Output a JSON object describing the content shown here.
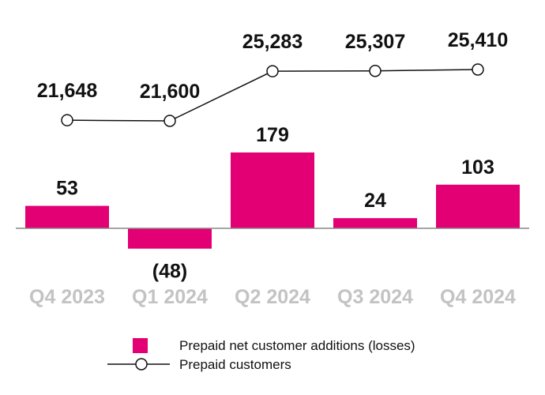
{
  "chart_data": {
    "type": "bar+line",
    "categories": [
      "Q4 2023",
      "Q1 2024",
      "Q2 2024",
      "Q3 2024",
      "Q4 2024"
    ],
    "series": [
      {
        "name": "Prepaid net customer additions (losses)",
        "type": "bar",
        "color": "#e20074",
        "values": [
          53,
          -48,
          179,
          24,
          103
        ],
        "labels": [
          "53",
          "(48)",
          "179",
          "24",
          "103"
        ]
      },
      {
        "name": "Prepaid customers",
        "type": "line",
        "color": "#111111",
        "values": [
          21648,
          21600,
          25283,
          25307,
          25410
        ],
        "labels": [
          "21,648",
          "21,600",
          "25,283",
          "25,307",
          "25,410"
        ]
      }
    ],
    "legend": {
      "placement": "bottom-center",
      "entries": [
        "Prepaid net customer additions (losses)",
        "Prepaid customers"
      ]
    },
    "title": "",
    "xlabel": "",
    "ylabel": "",
    "grid": false
  }
}
